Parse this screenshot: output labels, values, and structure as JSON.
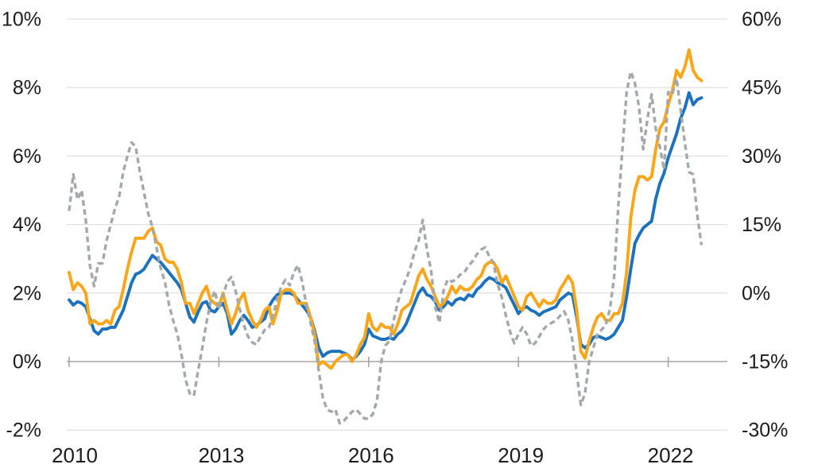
{
  "chart_data": {
    "type": "line",
    "title": "",
    "x_label": "",
    "y_label_left": "",
    "y_label_right": "",
    "x_unit": "monthly",
    "x_start": "2010-01",
    "x_end": "2022-09",
    "x_tick_labels": [
      "2010",
      "2013",
      "2016",
      "2019",
      "2022"
    ],
    "x_tick_years": [
      2010,
      2013,
      2016,
      2019,
      2022
    ],
    "left_axis": {
      "tick_labels": [
        "10%",
        "8%",
        "6%",
        "4%",
        "2%",
        "0%",
        "-2%"
      ],
      "tick_values": [
        10,
        8,
        6,
        4,
        2,
        0,
        -2
      ],
      "min": -2,
      "max": 10
    },
    "right_axis": {
      "tick_labels": [
        "60%",
        "45%",
        "30%",
        "15%",
        "0%",
        "-15%",
        "-30%"
      ],
      "tick_values": [
        60,
        45,
        30,
        15,
        0,
        -15,
        -30
      ],
      "min": -30,
      "max": 60
    },
    "grid": true,
    "legend_position": "none",
    "series": [
      {
        "name": "blue-solid-line",
        "axis": "left",
        "color": "#1c72bd",
        "style": "solid",
        "values": [
          1.8,
          1.65,
          1.75,
          1.7,
          1.6,
          1.25,
          0.9,
          0.8,
          0.95,
          0.95,
          1.0,
          1.0,
          1.25,
          1.5,
          1.9,
          2.3,
          2.55,
          2.6,
          2.7,
          2.9,
          3.1,
          3.0,
          2.9,
          2.75,
          2.6,
          2.45,
          2.3,
          2.1,
          1.7,
          1.3,
          1.15,
          1.45,
          1.7,
          1.75,
          1.5,
          1.45,
          1.6,
          1.7,
          1.4,
          0.8,
          0.95,
          1.2,
          1.35,
          1.2,
          1.0,
          1.05,
          1.15,
          1.25,
          1.6,
          1.8,
          1.95,
          2.0,
          2.0,
          2.0,
          1.95,
          1.8,
          1.65,
          1.5,
          1.3,
          0.9,
          0.4,
          0.15,
          0.25,
          0.3,
          0.3,
          0.3,
          0.25,
          0.2,
          0.05,
          0.15,
          0.3,
          0.5,
          0.95,
          0.75,
          0.7,
          0.65,
          0.65,
          0.7,
          0.65,
          0.8,
          0.9,
          1.1,
          1.4,
          1.7,
          2.0,
          2.15,
          1.95,
          1.9,
          1.75,
          1.5,
          1.6,
          1.75,
          1.65,
          1.8,
          1.85,
          1.8,
          1.95,
          1.9,
          2.1,
          2.2,
          2.35,
          2.45,
          2.4,
          2.3,
          2.25,
          2.15,
          1.9,
          1.65,
          1.4,
          1.55,
          1.6,
          1.5,
          1.45,
          1.35,
          1.45,
          1.5,
          1.55,
          1.6,
          1.8,
          1.9,
          2.0,
          1.95,
          1.3,
          0.5,
          0.4,
          0.5,
          0.7,
          0.75,
          0.7,
          0.65,
          0.7,
          0.8,
          1.0,
          1.2,
          1.9,
          2.7,
          3.45,
          3.7,
          3.9,
          4.0,
          4.1,
          4.75,
          5.2,
          5.5,
          5.95,
          6.3,
          6.65,
          7.1,
          7.4,
          7.85,
          7.5,
          7.65,
          7.7
        ]
      },
      {
        "name": "orange-solid-line",
        "axis": "left",
        "color": "#faa61a",
        "style": "solid",
        "values": [
          2.6,
          2.1,
          2.3,
          2.2,
          2.0,
          1.1,
          1.2,
          1.1,
          1.1,
          1.2,
          1.1,
          1.5,
          1.6,
          2.1,
          2.7,
          3.2,
          3.6,
          3.6,
          3.6,
          3.8,
          3.9,
          3.5,
          3.4,
          3.0,
          2.9,
          2.9,
          2.7,
          2.3,
          1.7,
          1.7,
          1.4,
          1.7,
          2.0,
          2.2,
          1.8,
          1.7,
          1.6,
          2.0,
          1.5,
          1.1,
          1.4,
          1.8,
          2.0,
          1.5,
          1.2,
          1.0,
          1.2,
          1.5,
          1.6,
          1.1,
          1.5,
          2.0,
          2.1,
          2.1,
          2.0,
          1.7,
          1.7,
          1.7,
          1.3,
          0.8,
          -0.1,
          0.0,
          -0.1,
          -0.2,
          0.0,
          0.1,
          0.2,
          0.2,
          0.0,
          0.2,
          0.5,
          0.7,
          1.4,
          1.0,
          0.9,
          1.1,
          1.0,
          1.0,
          0.8,
          1.1,
          1.5,
          1.6,
          1.7,
          2.1,
          2.5,
          2.7,
          2.4,
          2.2,
          1.9,
          1.6,
          1.7,
          1.9,
          2.2,
          2.0,
          2.2,
          2.1,
          2.1,
          2.2,
          2.4,
          2.5,
          2.8,
          2.9,
          2.9,
          2.7,
          2.3,
          2.5,
          2.2,
          1.9,
          1.6,
          1.5,
          1.9,
          2.0,
          1.8,
          1.6,
          1.8,
          1.7,
          1.7,
          1.8,
          2.1,
          2.3,
          2.5,
          2.3,
          1.5,
          0.3,
          0.1,
          0.6,
          1.0,
          1.3,
          1.4,
          1.2,
          1.2,
          1.4,
          1.4,
          1.7,
          2.6,
          4.2,
          5.0,
          5.4,
          5.4,
          5.3,
          5.4,
          6.2,
          6.8,
          7.0,
          7.5,
          7.9,
          8.5,
          8.3,
          8.6,
          9.1,
          8.5,
          8.3,
          8.2
        ]
      },
      {
        "name": "gray-dashed-line",
        "axis": "right",
        "color": "#a3a8ab",
        "style": "dashed",
        "values": [
          18,
          26,
          20.5,
          22.5,
          16,
          6,
          1.5,
          6.5,
          6.5,
          11.5,
          15,
          18.5,
          21,
          26.5,
          30,
          33,
          32,
          26.5,
          22,
          17.5,
          14.5,
          10,
          5.5,
          2.5,
          -2.5,
          -6,
          -9,
          -13.5,
          -19,
          -22,
          -22.5,
          -17,
          -12,
          -6.5,
          -2,
          0.5,
          -3.5,
          -0.5,
          2.5,
          3.5,
          0.5,
          -3.5,
          -7,
          -9.5,
          -10.8,
          -11.3,
          -9.5,
          -8.1,
          -7.6,
          -5,
          -1.2,
          1.5,
          2.9,
          1.7,
          4.5,
          6.1,
          2.5,
          -2.6,
          -6.4,
          -10.5,
          -17,
          -23,
          -25.5,
          -26,
          -25.5,
          -28.5,
          -28,
          -27,
          -26,
          -25.5,
          -26.5,
          -27.5,
          -27.5,
          -26.5,
          -23.5,
          -15,
          -11.5,
          -10.5,
          -6,
          -2,
          1,
          3,
          5.5,
          9,
          11.5,
          16,
          9.5,
          5,
          -3,
          -6.5,
          0.5,
          3,
          2.5,
          3,
          4,
          4.5,
          6,
          7,
          8.5,
          9.5,
          10,
          8,
          6.5,
          2,
          -1,
          -5,
          -8.5,
          -11,
          -9,
          -7.5,
          -9,
          -11.5,
          -11,
          -9.5,
          -8,
          -7,
          -6.5,
          -6,
          -5,
          -4,
          -6,
          -10.5,
          -17.5,
          -24.5,
          -22,
          -15,
          -12,
          -9,
          -8,
          -7,
          -3.5,
          3.5,
          19,
          31.5,
          44,
          48.5,
          46,
          40.5,
          31.5,
          38,
          43.5,
          36,
          32,
          27,
          44,
          43.5,
          47,
          40,
          33,
          26.5,
          26,
          17,
          10.5
        ]
      }
    ]
  },
  "colors": {
    "background": "#ffffff",
    "gridline": "#d9d9d9",
    "axis_line": "#a6a6a6",
    "tick_text": "#1c1c1c"
  }
}
